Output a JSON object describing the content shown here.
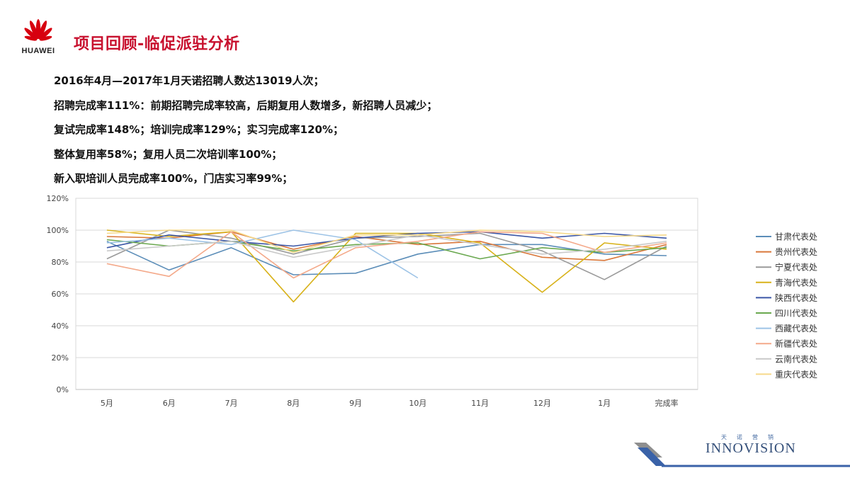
{
  "header": {
    "logo_text": "HUAWEI",
    "title": "项目回顾-临促派驻分析"
  },
  "bullets": [
    "2016年4月—2017年1月天诺招聘人数达13019人次；",
    "招聘完成率111%：前期招聘完成率较高，后期复用人数增多，新招聘人员减少；",
    "复试完成率148%；培训完成率129%；实习完成率120%；",
    "整体复用率58%；复用人员二次培训率100%；",
    "新入职培训人员完成率100%，门店实习率99%；"
  ],
  "chart_data": {
    "type": "line",
    "title": "",
    "xlabel": "",
    "ylabel": "",
    "ylim": [
      0,
      120
    ],
    "yticks": [
      0,
      20,
      40,
      60,
      80,
      100,
      120
    ],
    "ytick_suffix": "%",
    "grid": true,
    "legend_position": "right",
    "categories": [
      "5月",
      "6月",
      "7月",
      "8月",
      "9月",
      "10月",
      "11月",
      "12月",
      "1月",
      "完成率"
    ],
    "series": [
      {
        "name": "甘肃代表处",
        "color": "#5b8db8",
        "values": [
          93,
          75,
          89,
          72,
          73,
          85,
          91,
          91,
          85,
          84
        ]
      },
      {
        "name": "贵州代表处",
        "color": "#d9773a",
        "values": [
          96,
          95,
          99,
          88,
          96,
          91,
          93,
          83,
          81,
          91
        ]
      },
      {
        "name": "宁夏代表处",
        "color": "#9a9a9a",
        "values": [
          82,
          100,
          95,
          85,
          95,
          96,
          98,
          87,
          69,
          90
        ]
      },
      {
        "name": "青海代表处",
        "color": "#d8b21a",
        "values": [
          100,
          96,
          99,
          55,
          98,
          98,
          92,
          61,
          92,
          88
        ]
      },
      {
        "name": "陕西代表处",
        "color": "#3b56a6",
        "values": [
          89,
          97,
          93,
          90,
          95,
          98,
          99,
          95,
          98,
          95
        ]
      },
      {
        "name": "四川代表处",
        "color": "#6aa84f",
        "values": [
          94,
          90,
          93,
          87,
          91,
          92,
          82,
          89,
          86,
          89
        ]
      },
      {
        "name": "西藏代表处",
        "color": "#9dc3e6",
        "values": [
          92,
          95,
          91,
          100,
          94,
          70,
          null,
          null,
          null,
          null
        ]
      },
      {
        "name": "新疆代表处",
        "color": "#f4a98a",
        "values": [
          79,
          71,
          99,
          70,
          89,
          93,
          99,
          98,
          86,
          92
        ]
      },
      {
        "name": "云南代表处",
        "color": "#c9c9c9",
        "values": [
          87,
          90,
          93,
          83,
          90,
          97,
          91,
          85,
          88,
          93
        ]
      },
      {
        "name": "重庆代表处",
        "color": "#f6d98a",
        "values": [
          98,
          100,
          100,
          86,
          97,
          97,
          100,
          99,
          96,
          97
        ]
      }
    ]
  },
  "footer": {
    "brand_small": "天诺营销",
    "brand_name": "INNOVISION"
  }
}
